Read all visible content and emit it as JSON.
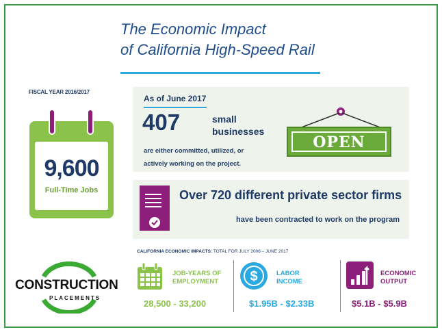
{
  "title": {
    "line1": "The Economic Impact",
    "line2": "of California High-Speed Rail"
  },
  "fiscal_year": "FISCAL YEAR 2016/2017",
  "jobs": {
    "value": "9,600",
    "label": "Full-Time Jobs"
  },
  "businesses": {
    "as_of": "As of June 2017",
    "count": "407",
    "label_line1": "small",
    "label_line2": "businesses",
    "desc_line1": "are either committed, utilized, or",
    "desc_line2": "actively working on the project.",
    "sign": "OPEN"
  },
  "firms": {
    "headline": "Over 720 different private sector firms",
    "sub": "have been contracted to work on the program"
  },
  "impacts_header": {
    "bold": "CALIFORNIA ECONOMIC IMPACTS:",
    "rest": " TOTAL FOR JULY 2006 – JUNE 2017"
  },
  "stats": [
    {
      "label_line1": "JOB-YEARS OF",
      "label_line2": "EMPLOYMENT",
      "value": "28,500 - 33,200",
      "icon": "calendar-grid-icon",
      "color": "#8bc34a"
    },
    {
      "label_line1": "LABOR",
      "label_line2": "INCOME",
      "value": "$1.95B - $2.33B",
      "icon": "dollar-circle-icon",
      "color": "#29a9df"
    },
    {
      "label_line1": "ECONOMIC",
      "label_line2": "OUTPUT",
      "value": "$5.1B - $5.9B",
      "icon": "bar-growth-icon",
      "color": "#8b1f7a"
    }
  ],
  "logo": {
    "word": "CONSTRUCTION",
    "sub": "PLACEMENTS"
  },
  "colors": {
    "navy": "#1f3a66",
    "green": "#8bc34a",
    "blue": "#29a9df",
    "purple": "#8b1f7a"
  }
}
